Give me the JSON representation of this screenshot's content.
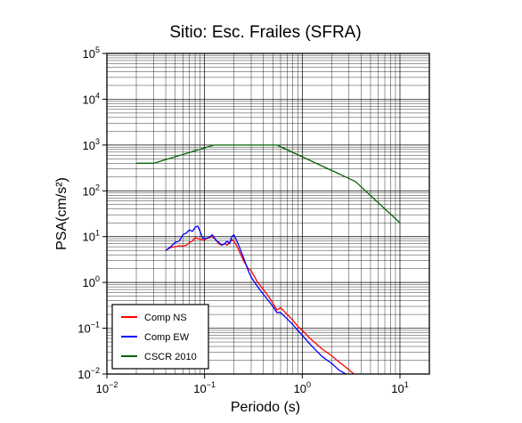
{
  "chart_data": {
    "type": "line",
    "title": "Sitio: Esc. Frailes (SFRA)",
    "xlabel": "Periodo (s)",
    "ylabel": "PSA(cm/s²)",
    "x_scale": "log",
    "y_scale": "log",
    "xlim": [
      0.01,
      20
    ],
    "ylim": [
      0.01,
      100000
    ],
    "grid": true,
    "legend_position": "bottom-left",
    "x_ticks": [
      {
        "value": 0.01,
        "base": "10",
        "exp": "−2"
      },
      {
        "value": 0.1,
        "base": "10",
        "exp": "−1"
      },
      {
        "value": 1,
        "base": "10",
        "exp": "0"
      },
      {
        "value": 10,
        "base": "10",
        "exp": "1"
      }
    ],
    "y_ticks": [
      {
        "value": 0.01,
        "base": "10",
        "exp": "−2"
      },
      {
        "value": 0.1,
        "base": "10",
        "exp": "−1"
      },
      {
        "value": 1,
        "base": "10",
        "exp": "0"
      },
      {
        "value": 10,
        "base": "10",
        "exp": "1"
      },
      {
        "value": 100,
        "base": "10",
        "exp": "2"
      },
      {
        "value": 1000,
        "base": "10",
        "exp": "3"
      },
      {
        "value": 10000,
        "base": "10",
        "exp": "4"
      },
      {
        "value": 100000,
        "base": "10",
        "exp": "5"
      }
    ],
    "series": [
      {
        "name": "Comp NS",
        "color": "#ff0000",
        "x": [
          0.04,
          0.045,
          0.05,
          0.055,
          0.06,
          0.065,
          0.07,
          0.075,
          0.08,
          0.085,
          0.09,
          0.1,
          0.11,
          0.12,
          0.13,
          0.14,
          0.15,
          0.16,
          0.17,
          0.18,
          0.19,
          0.2,
          0.22,
          0.25,
          0.28,
          0.3,
          0.35,
          0.4,
          0.45,
          0.5,
          0.55,
          0.6,
          0.7,
          0.8,
          0.9,
          1.0,
          1.2,
          1.4,
          1.6,
          2.0,
          2.4,
          2.8,
          3.2,
          3.5
        ],
        "y": [
          5.0,
          5.8,
          6.0,
          6.3,
          6.2,
          6.5,
          7.5,
          8.0,
          9.5,
          9.0,
          8.8,
          8.5,
          9.5,
          10.0,
          8.5,
          7.0,
          6.5,
          7.0,
          6.5,
          7.5,
          8.5,
          8.0,
          5.5,
          3.0,
          2.0,
          1.8,
          1.0,
          0.7,
          0.5,
          0.35,
          0.25,
          0.28,
          0.2,
          0.15,
          0.11,
          0.09,
          0.06,
          0.045,
          0.035,
          0.025,
          0.018,
          0.014,
          0.011,
          0.0095
        ]
      },
      {
        "name": "Comp EW",
        "color": "#0000ff",
        "x": [
          0.04,
          0.045,
          0.05,
          0.055,
          0.06,
          0.065,
          0.07,
          0.075,
          0.08,
          0.085,
          0.09,
          0.095,
          0.1,
          0.11,
          0.12,
          0.13,
          0.14,
          0.15,
          0.16,
          0.17,
          0.18,
          0.19,
          0.2,
          0.22,
          0.25,
          0.28,
          0.3,
          0.35,
          0.4,
          0.45,
          0.5,
          0.55,
          0.6,
          0.7,
          0.8,
          0.9,
          1.0,
          1.2,
          1.4,
          1.6,
          2.0,
          2.4,
          2.8
        ],
        "y": [
          5.0,
          6.0,
          7.5,
          8.0,
          11.0,
          12.0,
          14.0,
          13.0,
          16.0,
          17.0,
          13.0,
          9.5,
          9.0,
          9.5,
          11.0,
          8.5,
          7.5,
          6.5,
          7.0,
          8.0,
          7.0,
          10.0,
          11.0,
          7.0,
          3.5,
          1.8,
          1.3,
          0.8,
          0.55,
          0.4,
          0.3,
          0.22,
          0.22,
          0.16,
          0.12,
          0.09,
          0.07,
          0.045,
          0.032,
          0.024,
          0.017,
          0.012,
          0.01
        ]
      },
      {
        "name": "CSCR 2010",
        "color": "#006400",
        "x": [
          0.02,
          0.03,
          0.125,
          0.55,
          3.5,
          10
        ],
        "y": [
          400,
          400,
          1000,
          1000,
          160,
          20
        ]
      }
    ]
  }
}
